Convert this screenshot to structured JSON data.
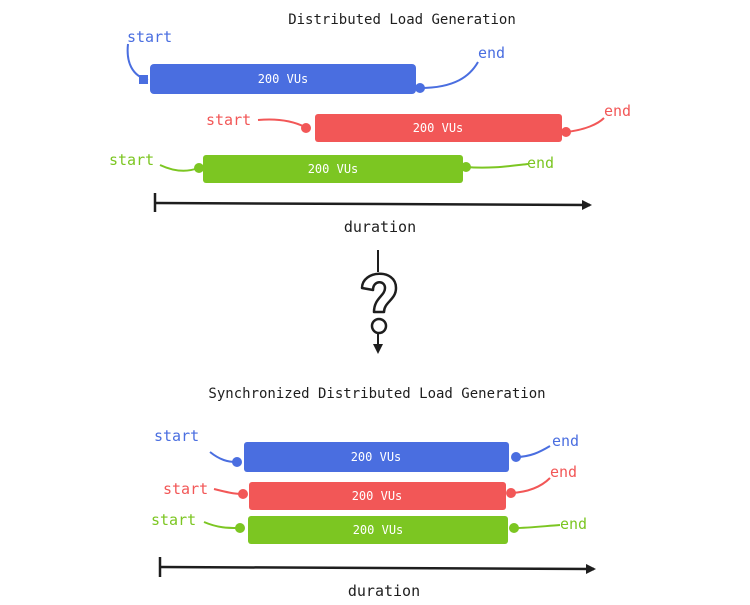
{
  "top": {
    "title": "Distributed Load Generation",
    "axis_label": "duration",
    "bars": [
      {
        "label": "200 VUs",
        "start": "start",
        "end": "end",
        "color": "#4a6ee0"
      },
      {
        "label": "200 VUs",
        "start": "start",
        "end": "end",
        "color": "#f25757"
      },
      {
        "label": "200 VUs",
        "start": "start",
        "end": "end",
        "color": "#7cc622"
      }
    ]
  },
  "transition": {
    "icon": "question-mark-icon"
  },
  "bottom": {
    "title": "Synchronized Distributed Load Generation",
    "axis_label": "duration",
    "bars": [
      {
        "label": "200 VUs",
        "start": "start",
        "end": "end",
        "color": "#4a6ee0"
      },
      {
        "label": "200 VUs",
        "start": "start",
        "end": "end",
        "color": "#f25757"
      },
      {
        "label": "200 VUs",
        "start": "start",
        "end": "end",
        "color": "#7cc622"
      }
    ]
  }
}
